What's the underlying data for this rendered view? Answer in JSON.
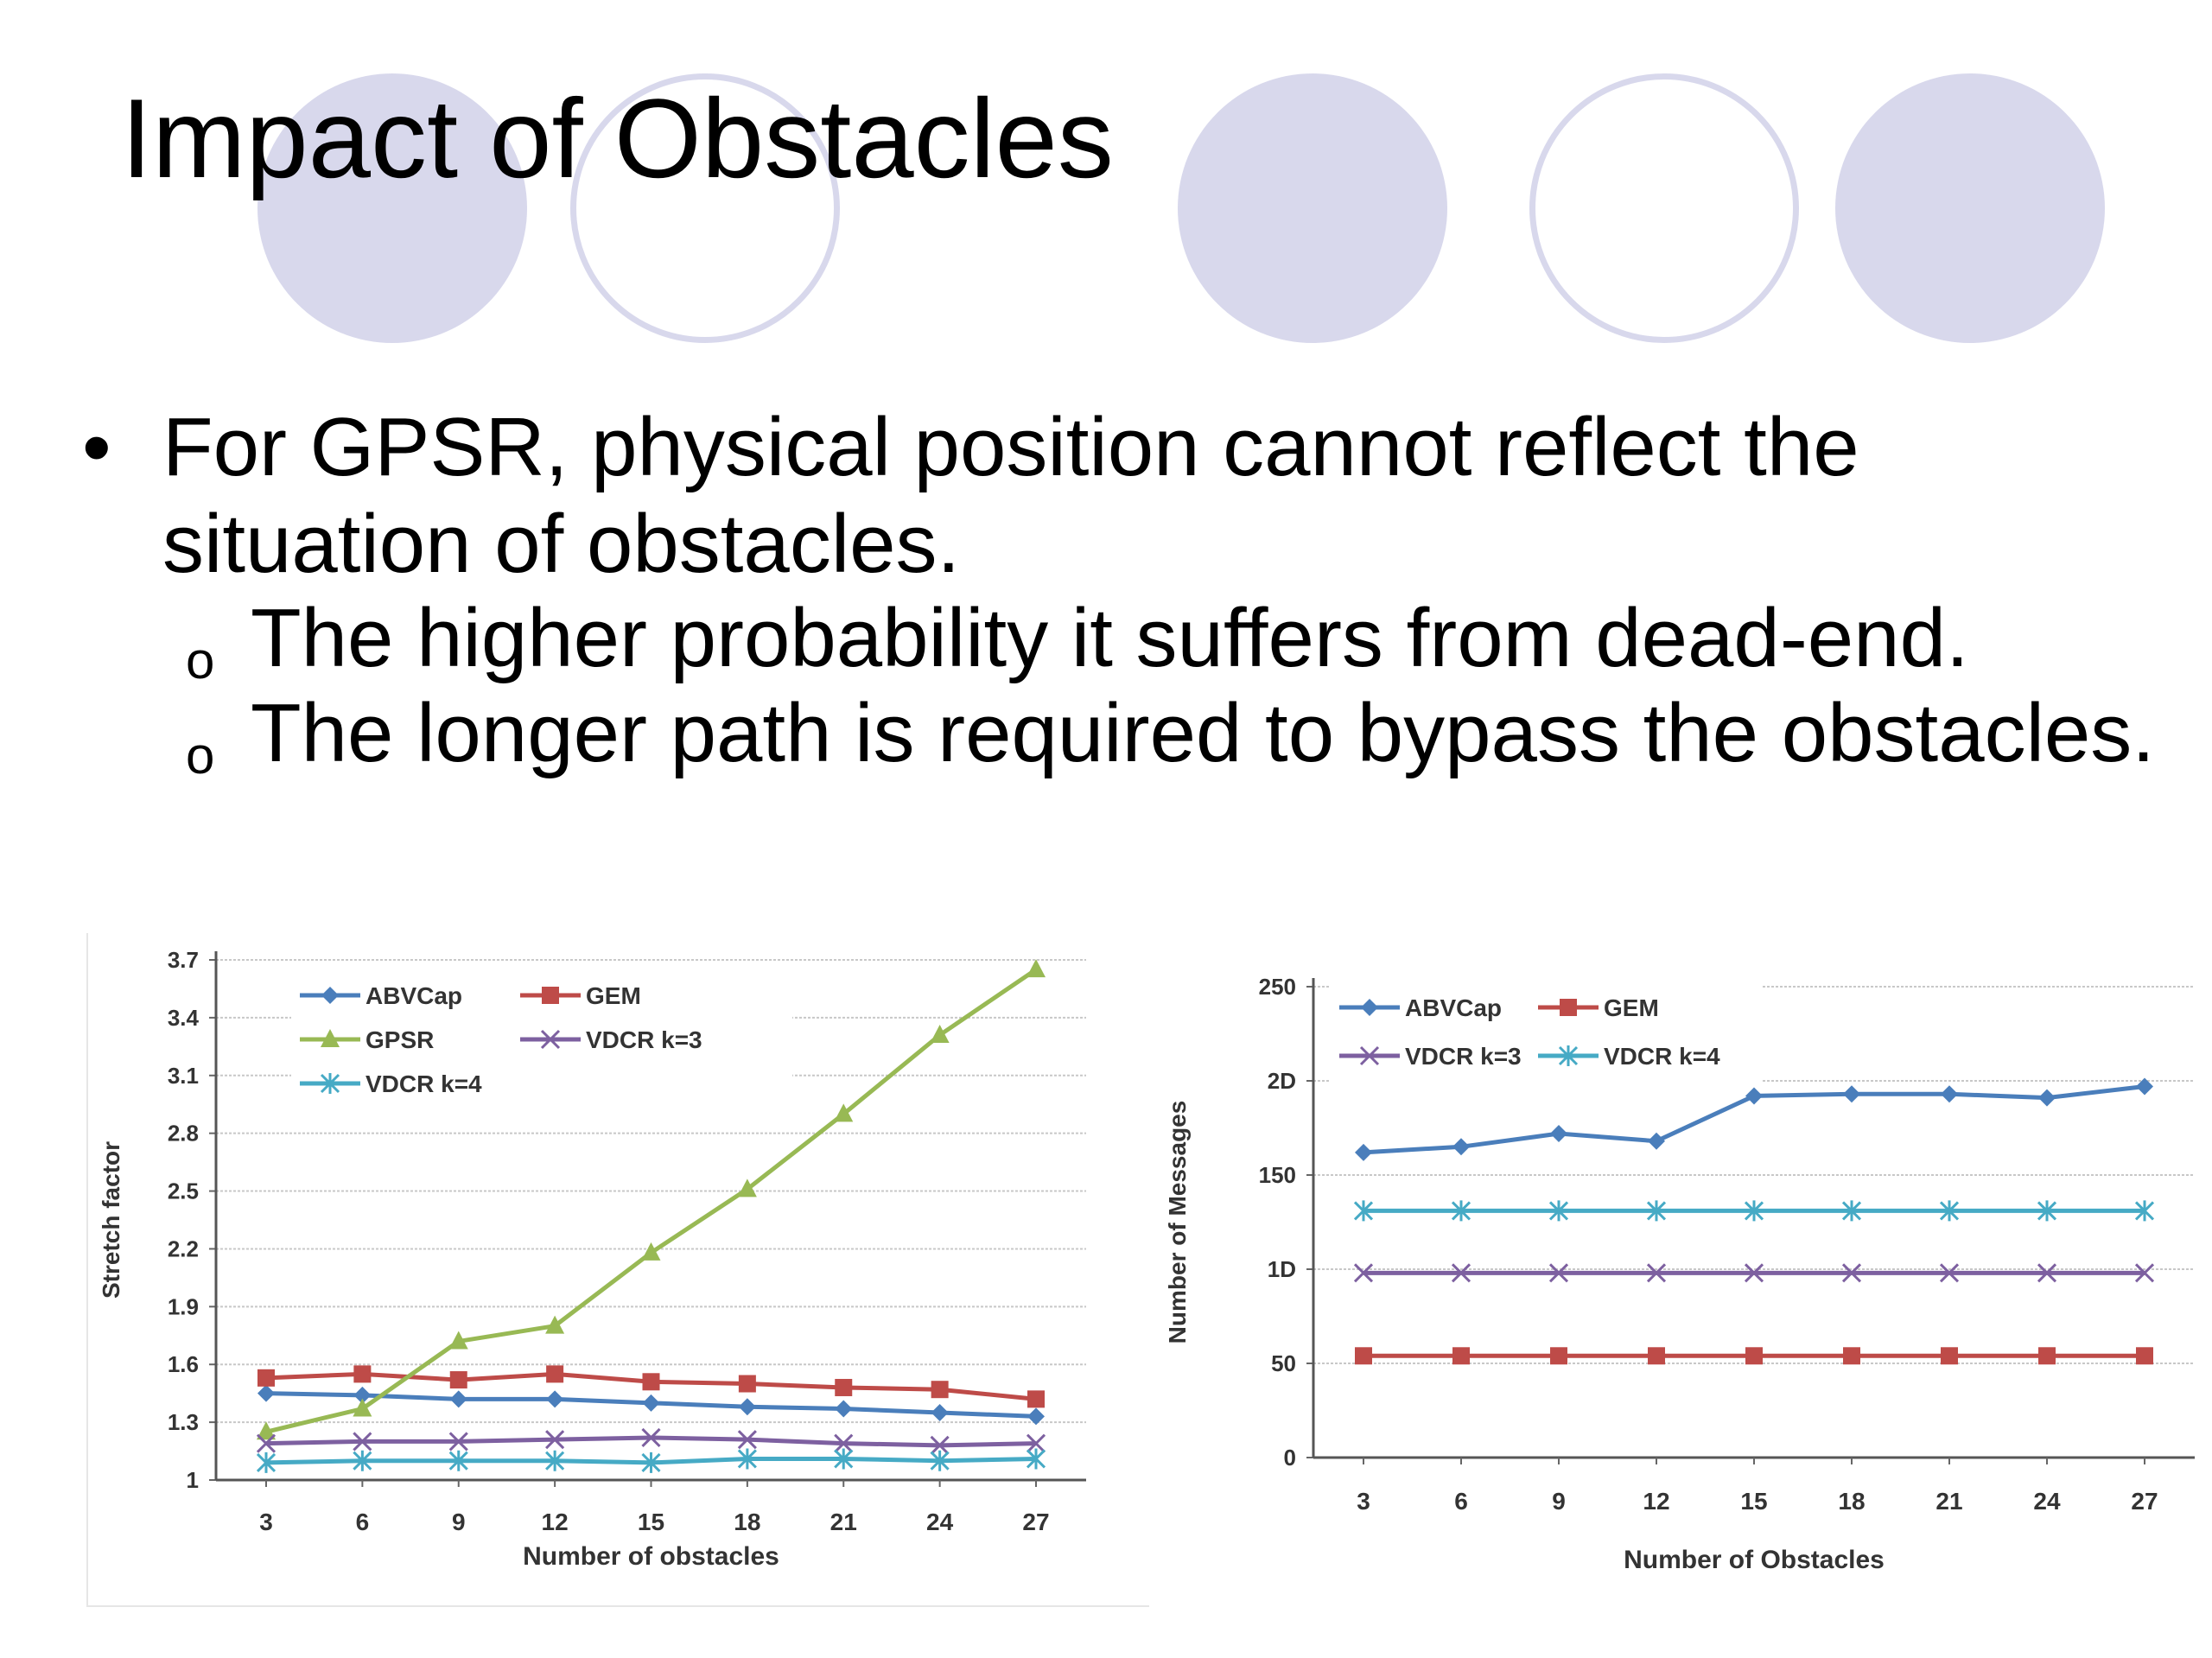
{
  "slide": {
    "title": "Impact of Obstacles",
    "bullet": "For GPSR, physical position cannot reflect the situation of obstacles.",
    "sub_bullets": [
      "The higher probability it suffers from dead-end.",
      "The longer path is required to bypass the obstacles."
    ]
  },
  "colors": {
    "circle": "#d8d8ec",
    "ABVCap": "#4a7ebb",
    "GEM": "#be4b48",
    "GPSR": "#98b954",
    "VDCR k=3": "#7d60a0",
    "VDCR k=4": "#46aac5"
  },
  "chart_data": [
    {
      "type": "line",
      "title": "",
      "xlabel": "Number of obstacles",
      "ylabel": "Stretch factor",
      "x": [
        3,
        6,
        9,
        12,
        15,
        18,
        21,
        24,
        27
      ],
      "yticks": [
        "1",
        "1.3",
        "1.6",
        "1.9",
        "2.2",
        "2.5",
        "2.8",
        "3.1",
        "3.4",
        "3.7"
      ],
      "ylim": [
        1,
        3.7
      ],
      "grid": true,
      "legend_position": "top-left",
      "series": [
        {
          "name": "ABVCap",
          "marker": "diamond",
          "values": [
            1.45,
            1.44,
            1.42,
            1.42,
            1.4,
            1.38,
            1.37,
            1.35,
            1.33
          ]
        },
        {
          "name": "GEM",
          "marker": "square",
          "values": [
            1.53,
            1.55,
            1.52,
            1.55,
            1.51,
            1.5,
            1.48,
            1.47,
            1.42
          ]
        },
        {
          "name": "GPSR",
          "marker": "triangle",
          "values": [
            1.25,
            1.37,
            1.72,
            1.8,
            2.18,
            2.51,
            2.9,
            3.31,
            3.65
          ]
        },
        {
          "name": "VDCR k=3",
          "marker": "x",
          "values": [
            1.19,
            1.2,
            1.2,
            1.21,
            1.22,
            1.21,
            1.19,
            1.18,
            1.19
          ]
        },
        {
          "name": "VDCR k=4",
          "marker": "asterisk",
          "values": [
            1.09,
            1.1,
            1.1,
            1.1,
            1.09,
            1.11,
            1.11,
            1.1,
            1.11
          ]
        }
      ]
    },
    {
      "type": "line",
      "title": "",
      "xlabel": "Number of Obstacles",
      "ylabel": "Number of Messages",
      "x": [
        3,
        6,
        9,
        12,
        15,
        18,
        21,
        24,
        27
      ],
      "yticks": [
        "0",
        "50",
        "1D",
        "150",
        "2D",
        "250"
      ],
      "ylim": [
        0,
        250
      ],
      "grid": true,
      "legend_position": "top-left",
      "series": [
        {
          "name": "ABVCap",
          "marker": "diamond",
          "values": [
            162,
            165,
            172,
            168,
            192,
            193,
            193,
            191,
            197
          ]
        },
        {
          "name": "GEM",
          "marker": "square",
          "values": [
            54,
            54,
            54,
            54,
            54,
            54,
            54,
            54,
            54
          ]
        },
        {
          "name": "VDCR k=3",
          "marker": "x",
          "values": [
            98,
            98,
            98,
            98,
            98,
            98,
            98,
            98,
            98
          ]
        },
        {
          "name": "VDCR k=4",
          "marker": "asterisk",
          "values": [
            131,
            131,
            131,
            131,
            131,
            131,
            131,
            131,
            131
          ]
        }
      ]
    }
  ]
}
